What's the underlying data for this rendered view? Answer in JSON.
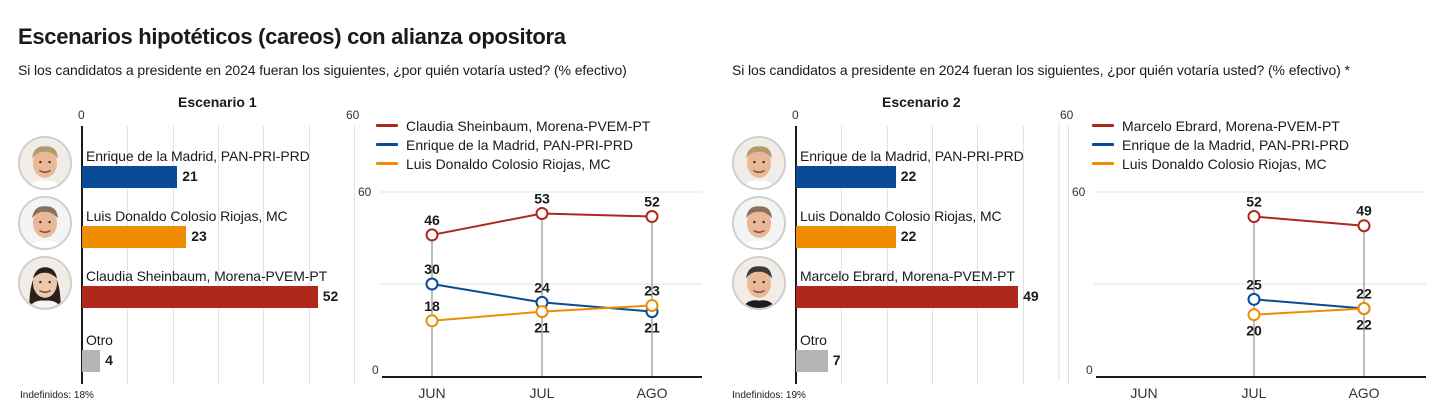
{
  "title": "Escenarios hipotéticos (careos) con alianza opositora",
  "colors": {
    "morena": "#b0281c",
    "pan": "#0b4a96",
    "mc": "#f08c00",
    "otro": "#b5b5b5",
    "axis": "#1a1a1a",
    "grid": "#e2e2e2",
    "drop": "#9a9a9a"
  },
  "panels": [
    {
      "subtitle": "Si los candidatos a presidente en 2024 fueran los siguientes, ¿por quién votaría usted?  (% efectivo)",
      "scenario_title": "Escenario 1",
      "axis_min_label": "0",
      "axis_max_label": "60",
      "indefinidos": "Indefinidos: 18%",
      "bars": [
        {
          "label": "Enrique de la Madrid, PAN-PRI-PRD",
          "value": 21,
          "value_label": "21",
          "party": "pan",
          "avatar": "enrique-de-la-madrid-photo"
        },
        {
          "label": "Luis Donaldo Colosio Riojas, MC",
          "value": 23,
          "value_label": "23",
          "party": "mc",
          "avatar": "luis-donaldo-colosio-photo"
        },
        {
          "label": "Claudia Sheinbaum, Morena-PVEM-PT",
          "value": 52,
          "value_label": "52",
          "party": "morena",
          "avatar": "claudia-sheinbaum-photo"
        },
        {
          "label": "Otro",
          "value": 4,
          "value_label": "4",
          "party": "otro",
          "avatar": null
        }
      ],
      "legend": [
        {
          "label": "Claudia Sheinbaum, Morena-PVEM-PT",
          "party": "morena"
        },
        {
          "label": "Enrique de la Madrid, PAN-PRI-PRD",
          "party": "pan"
        },
        {
          "label": "Luis Donaldo Colosio Riojas, MC",
          "party": "mc"
        }
      ]
    },
    {
      "subtitle": "Si los candidatos a presidente en 2024 fueran los siguientes, ¿por quién votaría usted?  (% efectivo) *",
      "scenario_title": "Escenario 2",
      "axis_min_label": "0",
      "axis_max_label": "60",
      "indefinidos": "Indefinidos: 19%",
      "bars": [
        {
          "label": "Enrique de la Madrid, PAN-PRI-PRD",
          "value": 22,
          "value_label": "22",
          "party": "pan",
          "avatar": "enrique-de-la-madrid-photo"
        },
        {
          "label": "Luis Donaldo Colosio Riojas, MC",
          "value": 22,
          "value_label": "22",
          "party": "mc",
          "avatar": "luis-donaldo-colosio-photo"
        },
        {
          "label": "Marcelo Ebrard, Morena-PVEM-PT",
          "value": 49,
          "value_label": "49",
          "party": "morena",
          "avatar": "marcelo-ebrard-photo"
        },
        {
          "label": "Otro",
          "value": 7,
          "value_label": "7",
          "party": "otro",
          "avatar": null
        }
      ],
      "legend": [
        {
          "label": "Marcelo Ebrard, Morena-PVEM-PT",
          "party": "morena"
        },
        {
          "label": "Enrique de la Madrid, PAN-PRI-PRD",
          "party": "pan"
        },
        {
          "label": "Luis Donaldo Colosio Riojas, MC",
          "party": "mc"
        }
      ]
    }
  ],
  "chart_data": [
    {
      "type": "bar",
      "orientation": "horizontal",
      "title": "Escenario 1",
      "categories": [
        "Enrique de la Madrid, PAN-PRI-PRD",
        "Luis Donaldo Colosio Riojas, MC",
        "Claudia Sheinbaum, Morena-PVEM-PT",
        "Otro"
      ],
      "values": [
        21,
        23,
        52,
        4
      ],
      "xlim": [
        0,
        60
      ],
      "unit": "% efectivo",
      "grid": true,
      "note": "Indefinidos: 18%"
    },
    {
      "type": "line",
      "title": "Escenario 1 (tendencia)",
      "x": [
        "JUN",
        "JUL",
        "AGO"
      ],
      "series": [
        {
          "name": "Claudia Sheinbaum, Morena-PVEM-PT",
          "party": "morena",
          "values": [
            46,
            53,
            52
          ],
          "label_pos": [
            "above",
            "above",
            "above"
          ]
        },
        {
          "name": "Enrique de la Madrid, PAN-PRI-PRD",
          "party": "pan",
          "values": [
            30,
            24,
            21
          ],
          "label_pos": [
            "above",
            "above",
            "below"
          ]
        },
        {
          "name": "Luis Donaldo Colosio Riojas, MC",
          "party": "mc",
          "values": [
            18,
            21,
            23
          ],
          "label_pos": [
            "above",
            "below",
            "above"
          ]
        }
      ],
      "ylim": [
        0,
        60
      ],
      "yticks": [
        "0",
        "60"
      ],
      "grid": true,
      "legend": "top-left"
    },
    {
      "type": "bar",
      "orientation": "horizontal",
      "title": "Escenario 2",
      "categories": [
        "Enrique de la Madrid, PAN-PRI-PRD",
        "Luis Donaldo Colosio Riojas, MC",
        "Marcelo Ebrard, Morena-PVEM-PT",
        "Otro"
      ],
      "values": [
        22,
        22,
        49,
        7
      ],
      "xlim": [
        0,
        60
      ],
      "unit": "% efectivo",
      "grid": true,
      "note": "Indefinidos: 19%"
    },
    {
      "type": "line",
      "title": "Escenario 2 (tendencia)",
      "x": [
        "JUN",
        "JUL",
        "AGO"
      ],
      "series": [
        {
          "name": "Marcelo Ebrard, Morena-PVEM-PT",
          "party": "morena",
          "values": [
            null,
            52,
            49
          ],
          "label_pos": [
            null,
            "above",
            "above"
          ]
        },
        {
          "name": "Enrique de la Madrid, PAN-PRI-PRD",
          "party": "pan",
          "values": [
            null,
            25,
            22
          ],
          "label_pos": [
            null,
            "above",
            "above"
          ]
        },
        {
          "name": "Luis Donaldo Colosio Riojas, MC",
          "party": "mc",
          "values": [
            null,
            20,
            22
          ],
          "label_pos": [
            null,
            "below",
            "below"
          ]
        }
      ],
      "ylim": [
        0,
        60
      ],
      "yticks": [
        "0",
        "60"
      ],
      "grid": true,
      "legend": "top-left"
    }
  ]
}
